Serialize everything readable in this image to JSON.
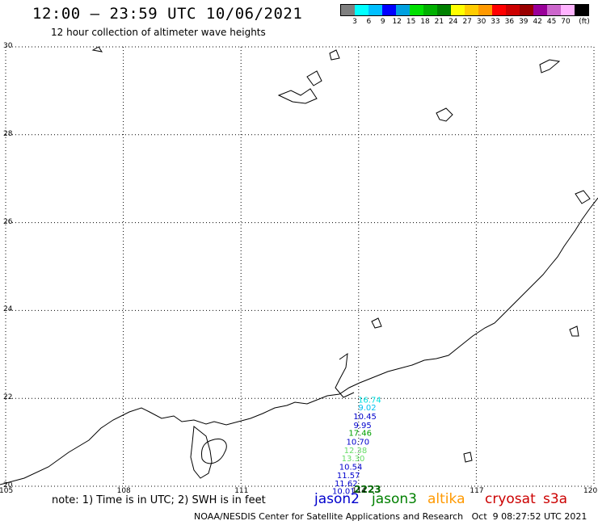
{
  "header": {
    "title": "12:00 – 23:59 UTC 10/06/2021",
    "subtitle": "12 hour collection of altimeter wave heights"
  },
  "legend": {
    "colors": [
      "#7f7f7f",
      "#00ffff",
      "#00bfff",
      "#0000ff",
      "#00a0e0",
      "#00e000",
      "#00b000",
      "#008000",
      "#ffff00",
      "#ffcc00",
      "#ff9900",
      "#ff0000",
      "#cc0000",
      "#990000",
      "#990099",
      "#cc66cc",
      "#ffb3ff",
      "#000000"
    ],
    "labels": [
      "3",
      "6",
      "9",
      "12",
      "15",
      "18",
      "21",
      "24",
      "27",
      "30",
      "33",
      "36",
      "39",
      "42",
      "45",
      "70"
    ],
    "unit": "(ft)"
  },
  "axes": {
    "lon_ticks": [
      "105",
      "108",
      "111",
      "114",
      "117",
      "120"
    ],
    "lat_ticks": [
      "30",
      "28",
      "26",
      "24",
      "22",
      "20"
    ]
  },
  "chart_data": {
    "type": "scatter",
    "xlim": [
      105,
      120
    ],
    "ylim": [
      20,
      30
    ],
    "grid": true,
    "points": [
      {
        "lon": 114.28,
        "lat": 21.98,
        "label": "16.74",
        "color": "#00e0e0"
      },
      {
        "lon": 114.22,
        "lat": 21.8,
        "label": "9.02",
        "color": "#00c0f0"
      },
      {
        "lon": 114.16,
        "lat": 21.6,
        "label": "10.45",
        "color": "#0000cc"
      },
      {
        "lon": 114.1,
        "lat": 21.4,
        "label": "9.95",
        "color": "#0000cc"
      },
      {
        "lon": 114.04,
        "lat": 21.22,
        "label": "17.46",
        "color": "#00a000"
      },
      {
        "lon": 113.98,
        "lat": 21.02,
        "label": "10.70",
        "color": "#0000cc"
      },
      {
        "lon": 113.92,
        "lat": 20.83,
        "label": "12.38",
        "color": "#66dd66"
      },
      {
        "lon": 113.86,
        "lat": 20.64,
        "label": "13.30",
        "color": "#66dd66"
      },
      {
        "lon": 113.8,
        "lat": 20.45,
        "label": "10.54",
        "color": "#0000cc"
      },
      {
        "lon": 113.74,
        "lat": 20.26,
        "label": "11.57",
        "color": "#0000cc"
      },
      {
        "lon": 113.68,
        "lat": 20.07,
        "label": "11.62",
        "color": "#0000cc"
      },
      {
        "lon": 113.62,
        "lat": 19.9,
        "label": "10.01",
        "color": "#0000cc"
      }
    ],
    "track_time_label": {
      "text": "2223",
      "color": "#006600"
    }
  },
  "footer": {
    "note": "note: 1) Time is in UTC; 2) SWH is in feet",
    "missions": [
      {
        "name": "jason2",
        "color": "#0000cc"
      },
      {
        "name": "jason3",
        "color": "#008000"
      },
      {
        "name": "altika",
        "color": "#ff9900"
      },
      {
        "name": "cryosat",
        "color": "#cc0000"
      },
      {
        "name": "s3a",
        "color": "#cc0000"
      }
    ],
    "credit": "NOAA/NESDIS Center for Satellite Applications and Research   Oct  9 08:27:52 UTC 2021"
  }
}
